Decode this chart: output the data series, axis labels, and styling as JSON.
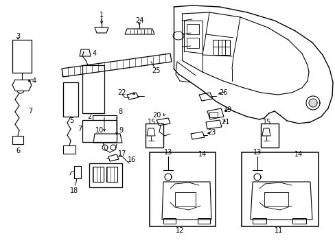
{
  "bg": "#ffffff",
  "lc": "#000000",
  "fig_w": 4.89,
  "fig_h": 3.6,
  "dpi": 100
}
